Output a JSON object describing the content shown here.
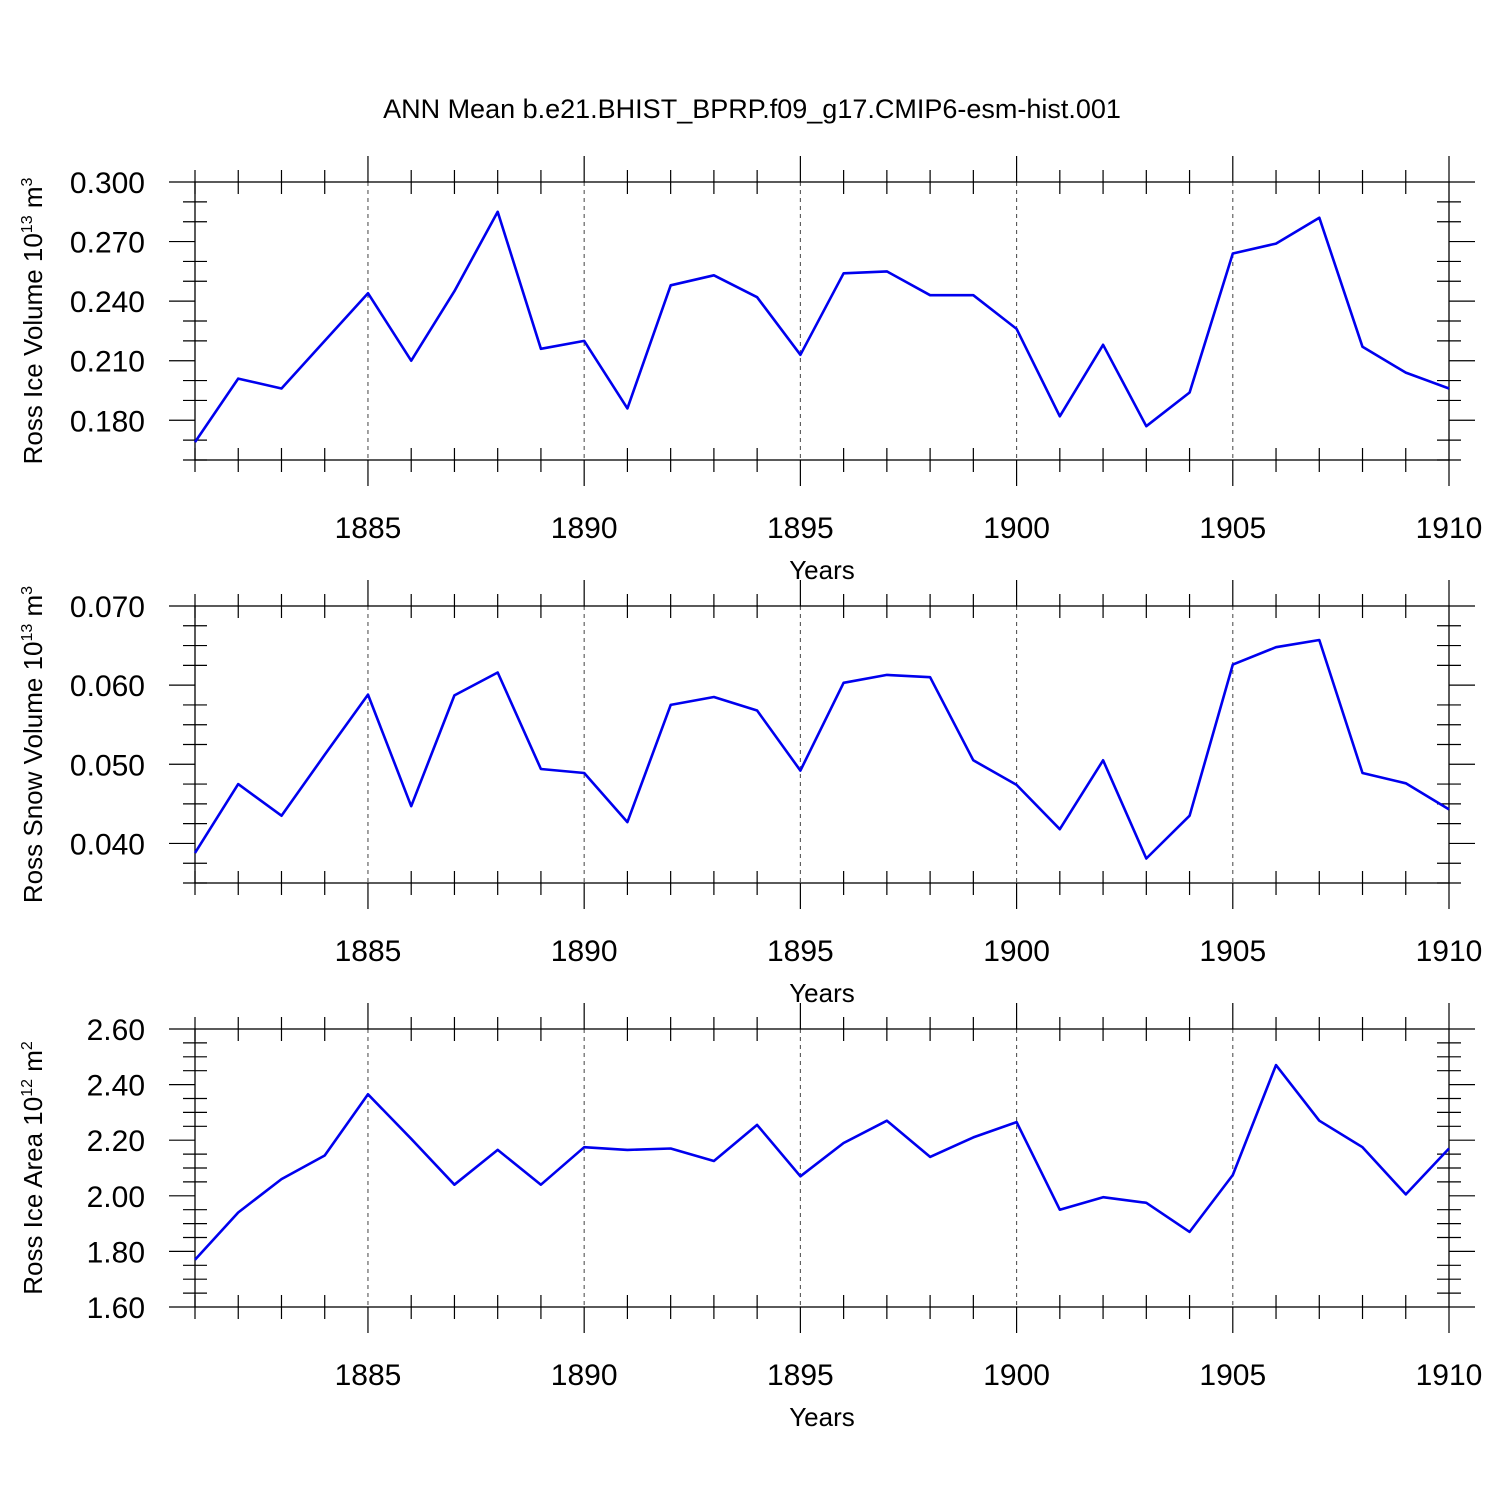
{
  "title": "ANN Mean b.e21.BHIST_BPRP.f09_g17.CMIP6-esm-hist.001",
  "colors": {
    "series": "#0000ee",
    "grid": "#555555",
    "axis": "#000000",
    "background": "#ffffff"
  },
  "chart_data": [
    {
      "type": "line",
      "xlabel": "Years",
      "ylabel_main": "Ross Ice Volume 10",
      "ylabel_exp": "13",
      "ylabel_unit": " m",
      "ylabel_unit_exp": "3",
      "xlim": [
        1881,
        1910
      ],
      "ylim": [
        0.16,
        0.3
      ],
      "x_major_ticks": [
        1885,
        1890,
        1895,
        1900,
        1905,
        1910
      ],
      "x_tick_labels": [
        "1885",
        "1890",
        "1895",
        "1900",
        "1905",
        "1910"
      ],
      "y_major_ticks": [
        0.18,
        0.21,
        0.24,
        0.27,
        0.3
      ],
      "y_tick_labels": [
        "0.180",
        "0.210",
        "0.240",
        "0.270",
        "0.300"
      ],
      "y_minor_step": 0.01,
      "grid": "vertical dashed at major x ticks",
      "x": [
        1881,
        1882,
        1883,
        1884,
        1885,
        1886,
        1887,
        1888,
        1889,
        1890,
        1891,
        1892,
        1893,
        1894,
        1895,
        1896,
        1897,
        1898,
        1899,
        1900,
        1901,
        1902,
        1903,
        1904,
        1905,
        1906,
        1907,
        1908,
        1909,
        1910
      ],
      "y": [
        0.169,
        0.201,
        0.196,
        0.22,
        0.244,
        0.21,
        0.245,
        0.285,
        0.216,
        0.22,
        0.186,
        0.248,
        0.253,
        0.242,
        0.213,
        0.254,
        0.255,
        0.243,
        0.243,
        0.226,
        0.182,
        0.218,
        0.177,
        0.194,
        0.264,
        0.269,
        0.282,
        0.217,
        0.204,
        0.196
      ]
    },
    {
      "type": "line",
      "xlabel": "Years",
      "ylabel_main": "Ross Snow Volume 10",
      "ylabel_exp": "13",
      "ylabel_unit": " m",
      "ylabel_unit_exp": "3",
      "xlim": [
        1881,
        1910
      ],
      "ylim": [
        0.035,
        0.07
      ],
      "x_major_ticks": [
        1885,
        1890,
        1895,
        1900,
        1905,
        1910
      ],
      "x_tick_labels": [
        "1885",
        "1890",
        "1895",
        "1900",
        "1905",
        "1910"
      ],
      "y_major_ticks": [
        0.04,
        0.05,
        0.06,
        0.07
      ],
      "y_tick_labels": [
        "0.040",
        "0.050",
        "0.060",
        "0.070"
      ],
      "y_minor_step": 0.0025,
      "grid": "vertical dashed at major x ticks",
      "x": [
        1881,
        1882,
        1883,
        1884,
        1885,
        1886,
        1887,
        1888,
        1889,
        1890,
        1891,
        1892,
        1893,
        1894,
        1895,
        1896,
        1897,
        1898,
        1899,
        1900,
        1901,
        1902,
        1903,
        1904,
        1905,
        1906,
        1907,
        1908,
        1909,
        1910
      ],
      "y": [
        0.0388,
        0.0475,
        0.0435,
        0.0512,
        0.0588,
        0.0447,
        0.0587,
        0.0616,
        0.0494,
        0.0489,
        0.0427,
        0.0575,
        0.0585,
        0.0568,
        0.0492,
        0.0603,
        0.0613,
        0.061,
        0.0505,
        0.0474,
        0.0418,
        0.0505,
        0.0381,
        0.0435,
        0.0626,
        0.0648,
        0.0657,
        0.0489,
        0.0476,
        0.0443
      ]
    },
    {
      "type": "line",
      "xlabel": "Years",
      "ylabel_main": "Ross Ice Area 10",
      "ylabel_exp": "12",
      "ylabel_unit": " m",
      "ylabel_unit_exp": "2",
      "xlim": [
        1881,
        1910
      ],
      "ylim": [
        1.6,
        2.6
      ],
      "x_major_ticks": [
        1885,
        1890,
        1895,
        1900,
        1905,
        1910
      ],
      "x_tick_labels": [
        "1885",
        "1890",
        "1895",
        "1900",
        "1905",
        "1910"
      ],
      "y_major_ticks": [
        1.6,
        1.8,
        2.0,
        2.2,
        2.4,
        2.6
      ],
      "y_tick_labels": [
        "1.60",
        "1.80",
        "2.00",
        "2.20",
        "2.40",
        "2.60"
      ],
      "y_minor_step": 0.05,
      "grid": "vertical dashed at major x ticks",
      "x": [
        1881,
        1882,
        1883,
        1884,
        1885,
        1886,
        1887,
        1888,
        1889,
        1890,
        1891,
        1892,
        1893,
        1894,
        1895,
        1896,
        1897,
        1898,
        1899,
        1900,
        1901,
        1902,
        1903,
        1904,
        1905,
        1906,
        1907,
        1908,
        1909,
        1910
      ],
      "y": [
        1.77,
        1.94,
        2.06,
        2.145,
        2.365,
        2.205,
        2.04,
        2.165,
        2.04,
        2.175,
        2.165,
        2.17,
        2.125,
        2.255,
        2.07,
        2.19,
        2.27,
        2.14,
        2.21,
        2.265,
        1.95,
        1.995,
        1.975,
        1.87,
        2.075,
        2.47,
        2.27,
        2.175,
        2.005,
        2.17
      ]
    }
  ]
}
